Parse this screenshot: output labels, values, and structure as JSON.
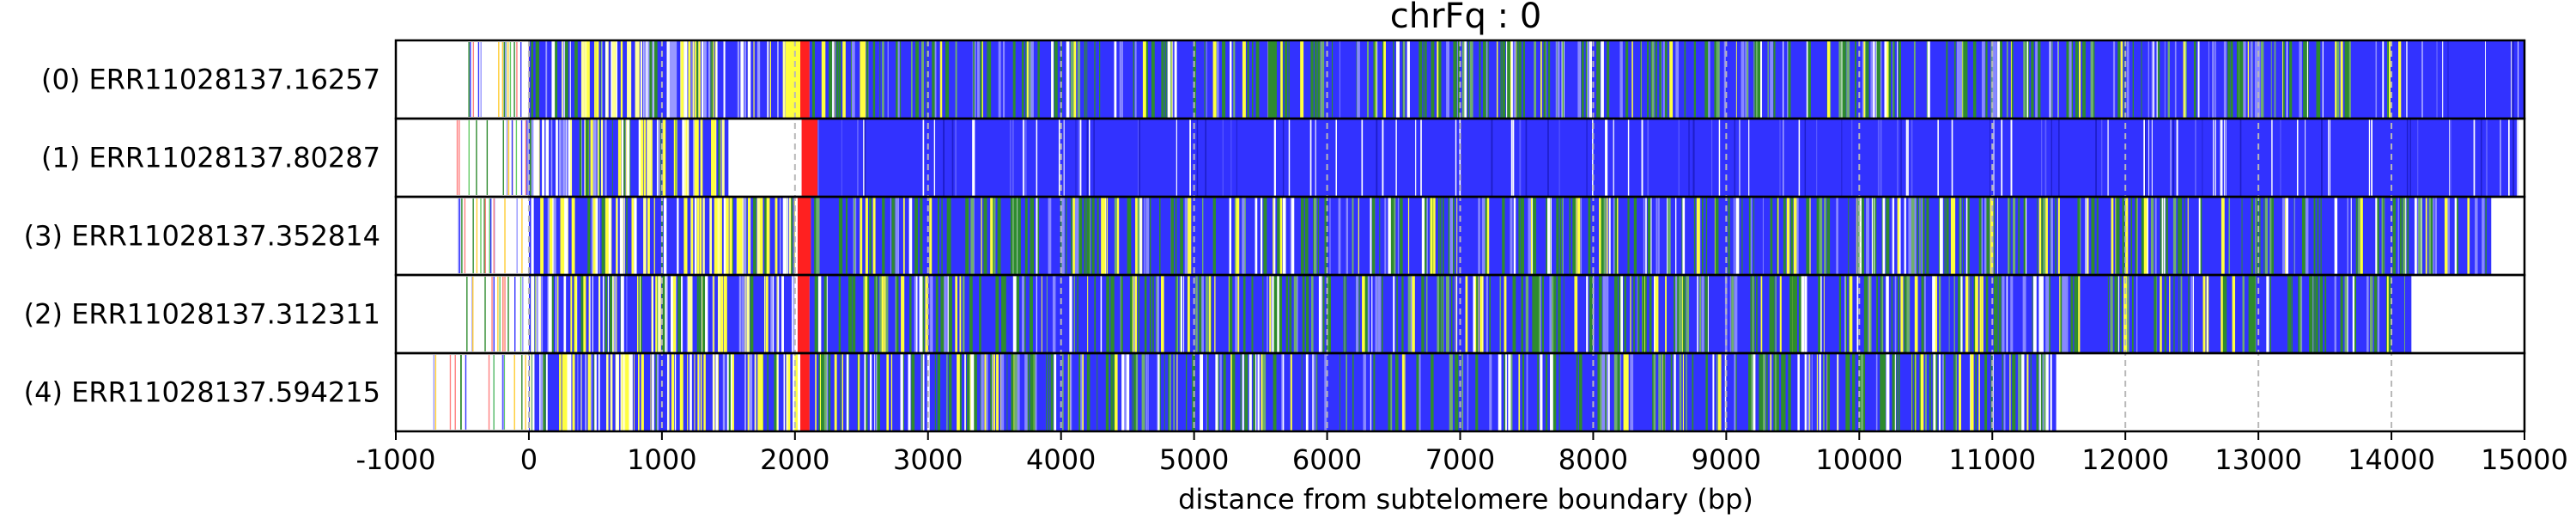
{
  "chart_data": {
    "type": "heatmap",
    "title": "chrFq : 0",
    "xlabel": "distance from subtelomere boundary (bp)",
    "xlim": [
      -1000,
      15000
    ],
    "xticks": [
      -1000,
      0,
      1000,
      2000,
      3000,
      4000,
      5000,
      6000,
      7000,
      8000,
      9000,
      10000,
      11000,
      12000,
      13000,
      14000,
      15000
    ],
    "tick_labels": [
      "-1000",
      "0",
      "1000",
      "2000",
      "3000",
      "4000",
      "5000",
      "6000",
      "7000",
      "8000",
      "9000",
      "10000",
      "11000",
      "12000",
      "13000",
      "14000",
      "15000"
    ],
    "grid": "vertical dashed at each x tick",
    "colors": {
      "blue": "#3232ff",
      "green": "#2e8b2e",
      "yellow": "#ffff40",
      "red": "#ff2020",
      "white": "#ffffff"
    },
    "rows": [
      {
        "label": "(0) ERR11028137.16257",
        "start": -550,
        "end": 15000,
        "segments": [
          {
            "start": 0,
            "end": 2000,
            "color": "mixed_blue"
          },
          {
            "start": 1930,
            "end": 2040,
            "color": "yellow"
          },
          {
            "start": 2040,
            "end": 2110,
            "color": "red"
          },
          {
            "start": 2110,
            "end": 14100,
            "color": "blue_green"
          },
          {
            "start": 14100,
            "end": 15000,
            "color": "blue"
          }
        ]
      },
      {
        "label": "(1) ERR11028137.80287",
        "start": -550,
        "end": 14950,
        "segments": [
          {
            "start": 0,
            "end": 1500,
            "color": "mixed_blue"
          },
          {
            "start": 2050,
            "end": 2170,
            "color": "red"
          },
          {
            "start": 2170,
            "end": 14950,
            "color": "blue"
          }
        ]
      },
      {
        "label": "(3) ERR11028137.352814",
        "start": -550,
        "end": 14750,
        "segments": [
          {
            "start": 0,
            "end": 2000,
            "color": "mixed_blue"
          },
          {
            "start": 2020,
            "end": 2120,
            "color": "red"
          },
          {
            "start": 2120,
            "end": 14750,
            "color": "blue_green"
          }
        ]
      },
      {
        "label": "(2) ERR11028137.312311",
        "start": -550,
        "end": 14150,
        "segments": [
          {
            "start": 0,
            "end": 2000,
            "color": "mixed_blue"
          },
          {
            "start": 2020,
            "end": 2110,
            "color": "red"
          },
          {
            "start": 2110,
            "end": 14150,
            "color": "blue_green"
          }
        ]
      },
      {
        "label": "(4) ERR11028137.594215",
        "start": -800,
        "end": 11480,
        "segments": [
          {
            "start": 0,
            "end": 2000,
            "color": "mixed_blue"
          },
          {
            "start": 2040,
            "end": 2110,
            "color": "red"
          },
          {
            "start": 2110,
            "end": 11480,
            "color": "blue_green"
          }
        ]
      }
    ]
  }
}
